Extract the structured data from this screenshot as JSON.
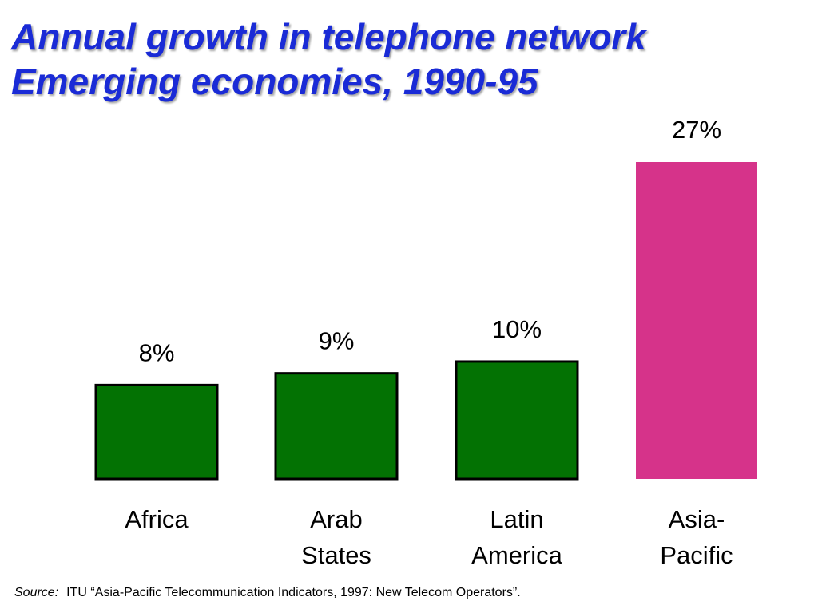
{
  "title": {
    "line1": "Annual growth in telephone network",
    "line2": "Emerging economies, 1990-95"
  },
  "source": {
    "label": "Source:",
    "text": "ITU “Asia-Pacific Telecommunication Indicators, 1997: New Telecom Operators”."
  },
  "colors": {
    "title": "#1a2bd6",
    "bar_default": "#037203",
    "bar_highlight": "#d6338a",
    "bar_border": "#000000"
  },
  "chart_data": {
    "type": "bar",
    "title": "Annual growth in telephone network Emerging economies, 1990-95",
    "categories": [
      [
        "Africa"
      ],
      [
        "Arab",
        "States"
      ],
      [
        "Latin",
        "America"
      ],
      [
        "Asia-",
        "Pacific"
      ]
    ],
    "values": [
      8,
      9,
      10,
      27
    ],
    "value_labels": [
      "8%",
      "9%",
      "10%",
      "27%"
    ],
    "highlight_index": 3,
    "unit": "%",
    "xlabel": "",
    "ylabel": "",
    "grid": false,
    "legend": "none"
  }
}
